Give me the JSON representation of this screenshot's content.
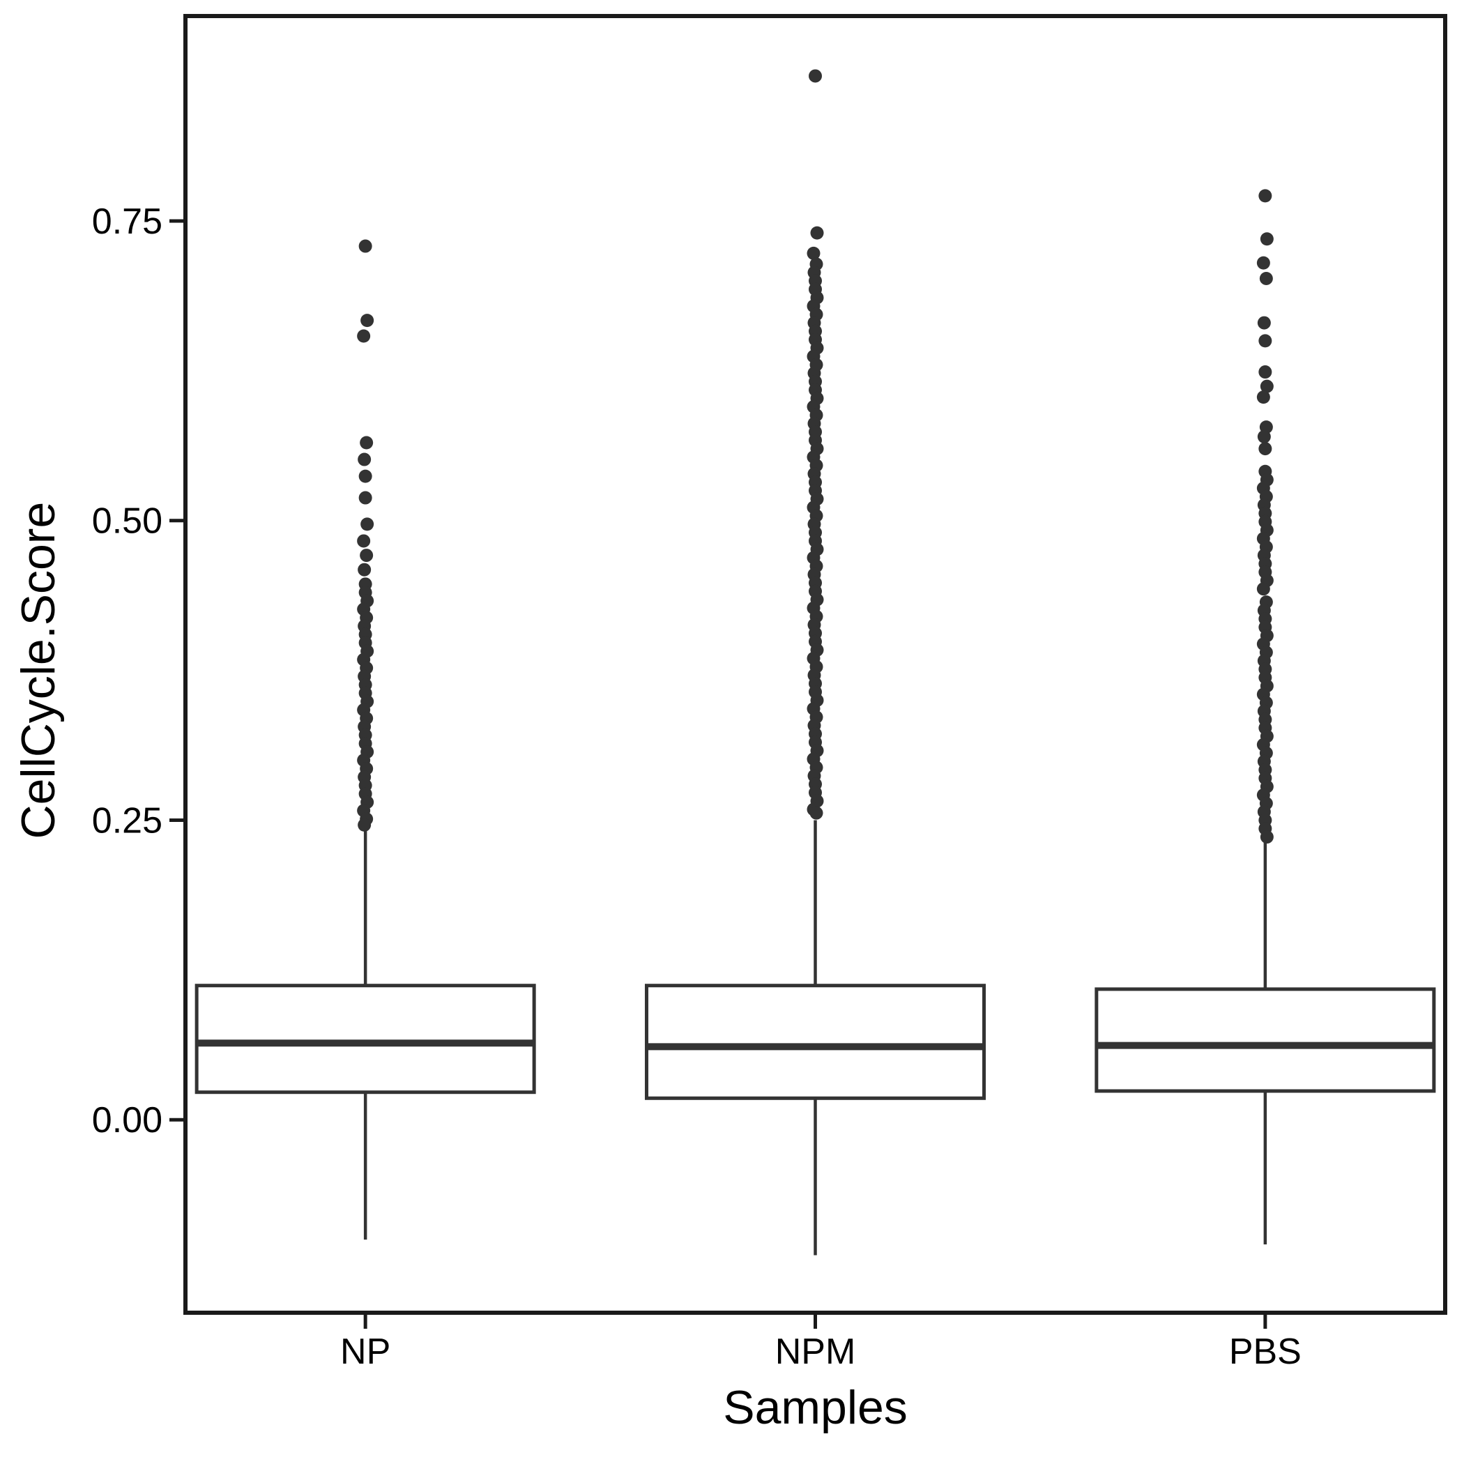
{
  "chart_data": {
    "type": "boxplot",
    "title": "",
    "xlabel": "Samples",
    "ylabel": "CellCycle.Score",
    "categories": [
      "NP",
      "NPM",
      "PBS"
    ],
    "y_ticks": [
      0.0,
      0.25,
      0.5,
      0.75
    ],
    "y_tick_labels": [
      "0.00",
      "0.25",
      "0.50",
      "0.75"
    ],
    "ylim": [
      -0.161,
      0.921
    ],
    "grid": false,
    "legend": "none",
    "colors": {
      "background": "#ffffff",
      "panel_border": "#1a1a1a",
      "box_stroke": "#333333",
      "box_fill": "#ffffff",
      "outlier_fill": "#333333",
      "text": "#000000"
    },
    "series": [
      {
        "name": "NP",
        "q1": 0.023,
        "median": 0.064,
        "q3": 0.112,
        "whisker_low": -0.1,
        "whisker_high": 0.245,
        "outliers": [
          0.729,
          0.667,
          0.654,
          0.565,
          0.551,
          0.537,
          0.519,
          0.497,
          0.483,
          0.471,
          0.459,
          0.447,
          0.44,
          0.433,
          0.426,
          0.419,
          0.412,
          0.405,
          0.398,
          0.391,
          0.384,
          0.377,
          0.37,
          0.363,
          0.356,
          0.349,
          0.342,
          0.335,
          0.328,
          0.321,
          0.314,
          0.307,
          0.3,
          0.293,
          0.286,
          0.279,
          0.272,
          0.265,
          0.258,
          0.251,
          0.246
        ]
      },
      {
        "name": "NPM",
        "q1": 0.018,
        "median": 0.061,
        "q3": 0.112,
        "whisker_low": -0.113,
        "whisker_high": 0.25,
        "outliers": [
          0.871,
          0.74,
          0.723,
          0.714,
          0.707,
          0.7,
          0.693,
          0.686,
          0.679,
          0.672,
          0.665,
          0.658,
          0.651,
          0.644,
          0.637,
          0.63,
          0.623,
          0.616,
          0.609,
          0.602,
          0.595,
          0.588,
          0.581,
          0.574,
          0.567,
          0.56,
          0.553,
          0.546,
          0.539,
          0.532,
          0.525,
          0.518,
          0.511,
          0.504,
          0.497,
          0.49,
          0.483,
          0.476,
          0.469,
          0.462,
          0.455,
          0.448,
          0.441,
          0.434,
          0.427,
          0.42,
          0.413,
          0.406,
          0.399,
          0.392,
          0.385,
          0.378,
          0.371,
          0.364,
          0.357,
          0.35,
          0.343,
          0.336,
          0.329,
          0.322,
          0.315,
          0.308,
          0.301,
          0.294,
          0.287,
          0.28,
          0.273,
          0.266,
          0.259,
          0.256
        ]
      },
      {
        "name": "PBS",
        "q1": 0.024,
        "median": 0.062,
        "q3": 0.109,
        "whisker_low": -0.104,
        "whisker_high": 0.235,
        "outliers": [
          0.771,
          0.735,
          0.715,
          0.702,
          0.665,
          0.65,
          0.624,
          0.612,
          0.603,
          0.578,
          0.57,
          0.56,
          0.541,
          0.534,
          0.527,
          0.52,
          0.513,
          0.506,
          0.499,
          0.492,
          0.485,
          0.478,
          0.471,
          0.464,
          0.457,
          0.45,
          0.443,
          0.432,
          0.425,
          0.418,
          0.411,
          0.404,
          0.397,
          0.39,
          0.383,
          0.376,
          0.369,
          0.362,
          0.355,
          0.348,
          0.341,
          0.334,
          0.327,
          0.32,
          0.313,
          0.306,
          0.299,
          0.292,
          0.285,
          0.278,
          0.271,
          0.264,
          0.257,
          0.25,
          0.243,
          0.236
        ]
      }
    ]
  }
}
